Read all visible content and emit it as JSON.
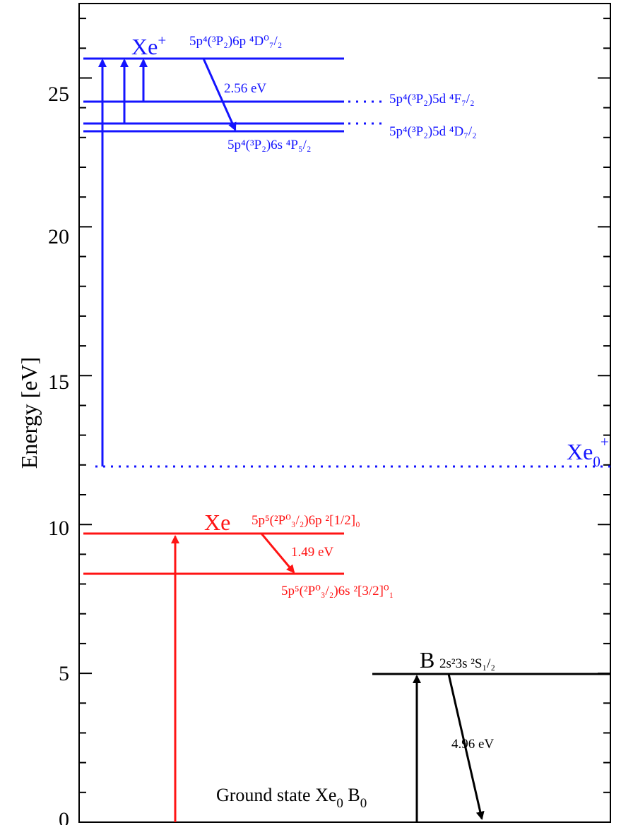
{
  "axis": {
    "ylabel": "Energy [eV]",
    "ylim": [
      0,
      27.5
    ],
    "major_ticks": [
      0,
      5,
      10,
      15,
      20,
      25
    ],
    "tick_labels": [
      "0",
      "5",
      "10",
      "15",
      "20",
      "25"
    ]
  },
  "colors": {
    "xe_ion": "#1414ff",
    "xe_neutral": "#ff1414",
    "boron": "#000000"
  },
  "labels": {
    "xe_ion_species": "Xe",
    "xe_ion_charge": "+",
    "xe0_ion_base": "Xe",
    "xe0_ion_sub": "0",
    "xe0_ion_sup": "+",
    "xe_neutral_species": "Xe",
    "boron_species": "B",
    "ground_state_prefix": "Ground state Xe",
    "ground_state_sub1": "0",
    "ground_state_mid": " B",
    "ground_state_sub2": "0",
    "e_xe_ion": "2.56 eV",
    "e_xe_neutral": "1.49 eV",
    "e_boron": "4.96 eV"
  },
  "levels": {
    "xe_ion_6p": "5p⁴(³P₂)6p ⁴D⁰₇/₂",
    "xe_ion_5d_f": "5p⁴(³P₂)5d ⁴F₇/₂",
    "xe_ion_5d_d": "5p⁴(³P₂)5d ⁴D₇/₂",
    "xe_ion_6s": "5p⁴(³P₂)6s ⁴P₅/₂",
    "xe_6p": "5p⁵(²P⁰₃/₂)6p ²[1/2]₀",
    "xe_6s": "5p⁵(²P⁰₃/₂)6s ²[3/2]⁰₁",
    "b_3s": "2s²3s ²S₁/₂"
  },
  "chart_data": {
    "type": "energy-level-diagram",
    "ylabel": "Energy [eV]",
    "ylim": [
      0,
      27.5
    ],
    "levels": [
      {
        "species": "Xe+",
        "state": "5p4(3P2)6p 4D0 7/2",
        "energy_eV": 26.2
      },
      {
        "species": "Xe+",
        "state": "5p4(3P2)5d 4F7/2",
        "energy_eV": 24.7
      },
      {
        "species": "Xe+",
        "state": "5p4(3P2)5d 4D7/2",
        "energy_eV": 24.0
      },
      {
        "species": "Xe+",
        "state": "5p4(3P2)6s 4P5/2",
        "energy_eV": 23.7
      },
      {
        "species": "Xe0+",
        "state": "",
        "energy_eV": 12.1
      },
      {
        "species": "Xe",
        "state": "5p5(2P0 3/2)6p 2[1/2]0",
        "energy_eV": 9.8
      },
      {
        "species": "Xe",
        "state": "5p5(2P0 3/2)6s 2[3/2]0 1",
        "energy_eV": 8.4
      },
      {
        "species": "B",
        "state": "2s23s 2S1/2",
        "energy_eV": 4.96
      }
    ],
    "emissions": [
      {
        "species": "Xe+",
        "energy_eV": 2.56
      },
      {
        "species": "Xe",
        "energy_eV": 1.49
      },
      {
        "species": "B",
        "energy_eV": 4.96
      }
    ]
  }
}
